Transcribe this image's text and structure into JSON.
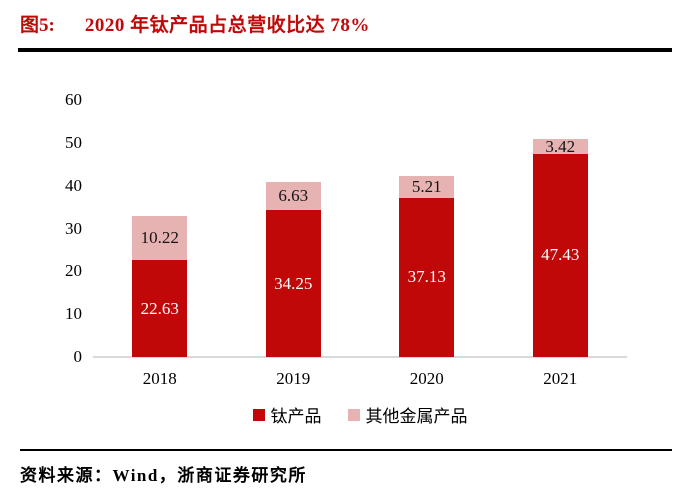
{
  "title": {
    "tag": "图5:",
    "text": "2020 年钛产品占总营收比达 78%"
  },
  "source": "资料来源：Wind，浙商证券研究所",
  "colors": {
    "title_red": "#C00808",
    "rule_black": "#000000",
    "axis_gray": "#D9D9D9",
    "bar_red": "#C00808",
    "bar_pink": "#E7B2B2",
    "label_on_red": "#FFFFFF",
    "label_on_pink": "#141414"
  },
  "chart_data": {
    "type": "bar",
    "stacked": true,
    "title": "2020 年钛产品占总营收比达 78%",
    "categories": [
      "2018",
      "2019",
      "2020",
      "2021"
    ],
    "series": [
      {
        "name": "钛产品",
        "color": "#C00808",
        "label_color": "#FFFFFF",
        "values": [
          22.63,
          34.25,
          37.13,
          47.43
        ]
      },
      {
        "name": "其他金属产品",
        "color": "#E7B2B2",
        "label_color": "#141414",
        "values": [
          10.22,
          6.63,
          5.21,
          3.42
        ]
      }
    ],
    "xlabel": "",
    "ylabel": "",
    "ylim": [
      0,
      60
    ],
    "yticks": [
      0,
      10,
      20,
      30,
      40,
      50,
      60
    ],
    "grid": false,
    "data_labels": true,
    "legend_position": "bottom"
  }
}
